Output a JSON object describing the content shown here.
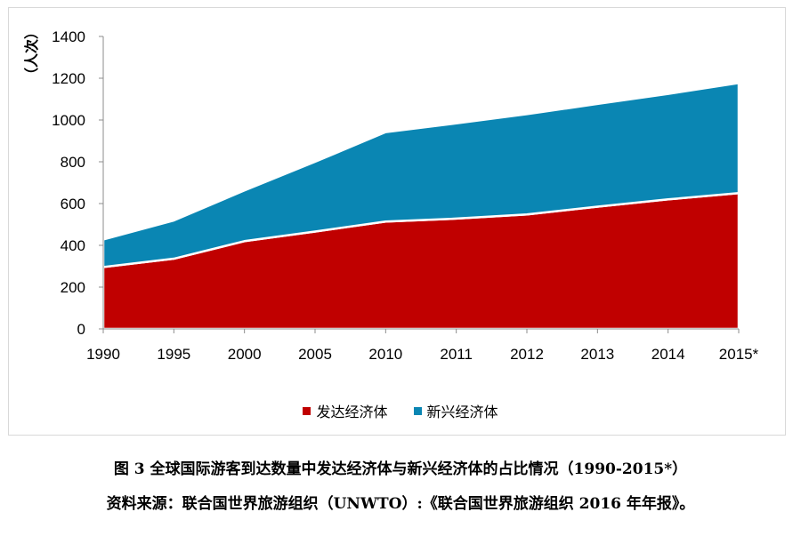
{
  "chart_data": {
    "type": "area",
    "stacked": true,
    "x": [
      "1990",
      "1995",
      "2000",
      "2005",
      "2010",
      "2011",
      "2012",
      "2013",
      "2014",
      "2015*"
    ],
    "series": [
      {
        "name": "发达经济体",
        "color": "#c00000",
        "values": [
          296,
          336,
          420,
          466,
          514,
          528,
          548,
          585,
          620,
          650
        ]
      },
      {
        "name": "新兴经济体",
        "color": "#0a86b3",
        "values": [
          132,
          183,
          243,
          334,
          428,
          456,
          480,
          492,
          505,
          527
        ]
      }
    ],
    "ylabel": "（人次）",
    "ylim": [
      0,
      1400
    ],
    "yticks": [
      0,
      200,
      400,
      600,
      800,
      1000,
      1200,
      1400
    ],
    "grid": false,
    "legend_position": "bottom"
  },
  "caption": {
    "title": "图 3  全球国际游客到达数量中发达经济体与新兴经济体的占比情况（1990-2015*）",
    "source": "资料来源：联合国世界旅游组织（UNWTO）:《联合国世界旅游组织 2016 年年报》。"
  }
}
